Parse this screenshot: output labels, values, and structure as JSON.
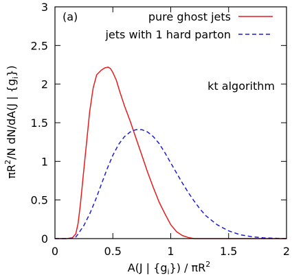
{
  "chart_data": {
    "type": "line",
    "panel_label": "(a)",
    "annotation": "kt algorithm",
    "xlabel": {
      "main": "A(J | {g",
      "sub": "i",
      "mid": "}) / πR",
      "sup": "2"
    },
    "ylabel": {
      "p1": "πR",
      "sup": "2",
      "p2": "/N dN/dA(J | {g",
      "sub": "i",
      "p3": "})"
    },
    "xlim": [
      0,
      2
    ],
    "ylim": [
      0,
      3
    ],
    "xticks": [
      0,
      0.5,
      1,
      1.5,
      2
    ],
    "xtick_labels": [
      "0",
      "0.5",
      "1",
      "1.5",
      "2"
    ],
    "yticks": [
      0,
      0.5,
      1,
      1.5,
      2,
      2.5,
      3
    ],
    "ytick_labels": [
      "0",
      "0.5",
      "1",
      "1.5",
      "2",
      "2.5",
      "3"
    ],
    "legend_position": "top-right",
    "grid": false,
    "series": [
      {
        "name": "pure ghost jets",
        "color": "#e8191b",
        "dash": "solid",
        "x": [
          0.0,
          0.1,
          0.15,
          0.18,
          0.2,
          0.22,
          0.25,
          0.28,
          0.3,
          0.33,
          0.36,
          0.4,
          0.43,
          0.46,
          0.48,
          0.5,
          0.53,
          0.56,
          0.6,
          0.65,
          0.7,
          0.75,
          0.8,
          0.85,
          0.9,
          0.95,
          1.0,
          1.05,
          1.1,
          1.15,
          1.2,
          1.3,
          1.4,
          1.6,
          2.0
        ],
        "y": [
          0.0,
          0.0,
          0.01,
          0.06,
          0.2,
          0.45,
          0.9,
          1.35,
          1.65,
          1.95,
          2.12,
          2.18,
          2.21,
          2.22,
          2.2,
          2.15,
          2.05,
          1.9,
          1.72,
          1.52,
          1.3,
          1.08,
          0.86,
          0.66,
          0.47,
          0.32,
          0.18,
          0.09,
          0.04,
          0.015,
          0.0,
          0.0,
          0.0,
          0.0,
          0.0
        ]
      },
      {
        "name": "jets with 1 hard parton",
        "color": "#1a1ad6",
        "dash": "dashed",
        "x": [
          0.0,
          0.1,
          0.15,
          0.18,
          0.2,
          0.25,
          0.3,
          0.35,
          0.4,
          0.45,
          0.5,
          0.55,
          0.6,
          0.65,
          0.7,
          0.75,
          0.8,
          0.85,
          0.9,
          0.95,
          1.0,
          1.05,
          1.1,
          1.15,
          1.2,
          1.25,
          1.3,
          1.4,
          1.5,
          1.6,
          1.7,
          1.8,
          1.9,
          2.0
        ],
        "y": [
          0.0,
          0.0,
          0.005,
          0.02,
          0.06,
          0.17,
          0.32,
          0.5,
          0.7,
          0.9,
          1.08,
          1.22,
          1.32,
          1.38,
          1.41,
          1.41,
          1.38,
          1.32,
          1.23,
          1.11,
          0.98,
          0.85,
          0.72,
          0.6,
          0.49,
          0.39,
          0.3,
          0.18,
          0.1,
          0.05,
          0.025,
          0.01,
          0.004,
          0.0
        ]
      }
    ]
  }
}
